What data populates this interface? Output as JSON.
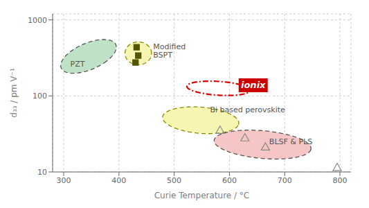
{
  "chart_data": {
    "type": "scatter",
    "x_label": "Curie Temperature / °C",
    "y_label": "d₃₃ / pm V⁻¹",
    "log": "y",
    "xlim": [
      280,
      820
    ],
    "ylim": [
      10,
      1200
    ],
    "xticks": [
      300,
      400,
      500,
      600,
      700,
      800
    ],
    "yticks": [
      10,
      100,
      1000
    ],
    "grid": true,
    "regions": [
      {
        "cx": 345,
        "cy": 331.1311215,
        "width": 72,
        "height_decades": 0.52,
        "angle": -38,
        "color": "#b8dfc0",
        "edge_color": "#555555",
        "line_style": "dashed"
      },
      {
        "cx": 435,
        "cy": 363.0780548,
        "width": 48,
        "height_decades": 0.3,
        "angle": 0,
        "color": "#f5f5aa",
        "edge_color": "#888800",
        "line_style": "dashed"
      },
      {
        "cx": 580,
        "cy": 125.8925412,
        "width": 115,
        "height_decades": 0.18,
        "angle": -8,
        "edge_color": "#dd0000",
        "line_style": "dashdot"
      },
      {
        "cx": 548,
        "cy": 47.86300923,
        "width": 140,
        "height_decades": 0.34,
        "angle": -13,
        "color": "#f5f5aa",
        "edge_color": "#888800",
        "line_style": "dashed"
      },
      {
        "cx": 660,
        "cy": 22.90867653,
        "width": 178,
        "height_decades": 0.36,
        "angle": -12,
        "color": "#f5c0c0",
        "edge_color": "#555555",
        "line_style": "dashed"
      }
    ],
    "annotations": [
      {
        "text": "PZT",
        "x": 312,
        "y": 263.0267992
      },
      {
        "text": "Modified\nBSPT",
        "x": 462,
        "y": 398.1071706
      },
      {
        "text": "Bi based perovskite",
        "x": 565,
        "y": 66.0693448
      },
      {
        "text": "BLSF & PLS",
        "x": 672,
        "y": 25.11886432
      }
    ],
    "badge": {
      "text": "ionix",
      "x": 643,
      "y": 138.0384265,
      "color": "#cc0000",
      "text_color": "white"
    },
    "series": [
      {
        "marker": "square",
        "color": "#555500",
        "x": [
          432,
          435,
          430
        ],
        "values": [
          436.5158322,
          338.8441561,
          275.4228703
        ]
      },
      {
        "marker": "triangle-open",
        "color": "#888888",
        "x": [
          583,
          628,
          665,
          795
        ],
        "values": [
          34.67368505,
          27.54228703,
          20.89296131,
          11.22018454
        ]
      }
    ]
  }
}
